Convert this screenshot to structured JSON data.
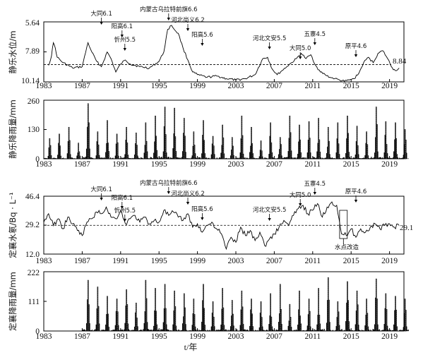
{
  "x_title": "t/年",
  "chart_data": [
    {
      "type": "line",
      "ylabel": "静乐水位/m",
      "y_inverted": true,
      "ylim": [
        5.64,
        10.14
      ],
      "yticks": [
        "5.64",
        "7.89",
        "10.14"
      ],
      "xlim": [
        1983,
        2020.5
      ],
      "xticks": [
        "1983",
        "1987",
        "1991",
        "1995",
        "1999",
        "2003",
        "2007",
        "2011",
        "2015",
        "2019"
      ],
      "ref_line": 8.84,
      "ref_label": "8.84",
      "series": [
        {
          "x": [
            1983.5,
            1983.8,
            1984.0,
            1984.2,
            1984.4,
            1985.0,
            1986.0,
            1987.0,
            1987.6,
            1988.0,
            1988.5,
            1989.0,
            1989.6,
            1990.0,
            1990.5,
            1991.0,
            1991.5,
            1992.0,
            1993.0,
            1994.0,
            1995.0,
            1995.5,
            1995.9,
            1996.3,
            1996.7,
            1997.0,
            1997.5,
            1998.0,
            1998.5,
            1999.0,
            2000.0,
            2001.0,
            2002.0,
            2003.0,
            2004.0,
            2005.0,
            2005.8,
            2006.3,
            2006.8,
            2007.3,
            2007.8,
            2008.3,
            2008.8,
            2009.3,
            2009.8,
            2010.3,
            2010.8,
            2011.3,
            2011.8,
            2012.3,
            2012.8,
            2013.3,
            2013.8,
            2014.3,
            2014.8,
            2015.3,
            2015.8,
            2016.3,
            2016.8,
            2017.3,
            2017.8,
            2018.3,
            2018.8,
            2019.3,
            2019.6,
            2020.0
          ],
          "values": [
            8.9,
            8.2,
            7.2,
            7.6,
            8.3,
            8.7,
            9.1,
            9.0,
            7.2,
            7.9,
            8.6,
            9.0,
            7.9,
            8.4,
            9.4,
            8.8,
            8.5,
            8.8,
            9.0,
            9.1,
            8.6,
            7.9,
            6.2,
            5.9,
            6.3,
            6.5,
            7.6,
            8.5,
            9.4,
            9.6,
            9.8,
            9.7,
            9.9,
            10.0,
            9.9,
            9.6,
            8.4,
            8.3,
            9.2,
            9.6,
            9.3,
            9.0,
            8.7,
            8.4,
            8.0,
            8.4,
            8.1,
            8.9,
            9.4,
            9.6,
            9.8,
            9.9,
            10.0,
            10.1,
            10.0,
            9.9,
            9.5,
            8.7,
            8.3,
            8.7,
            8.0,
            7.8,
            8.4,
            9.1,
            9.3,
            9.1
          ]
        }
      ],
      "annotations": [
        {
          "text": "大同6.1",
          "year": 1989.0
        },
        {
          "text": "阳高6.1",
          "year": 1991.0
        },
        {
          "text": "忻州5.5",
          "year": 1991.0
        },
        {
          "text": "内蒙古乌拉特前旗6.6",
          "year": 1996.0
        },
        {
          "text": "河北尚义6.2",
          "year": 1998.0
        },
        {
          "text": "阳高5.6",
          "year": 1999.5
        },
        {
          "text": "河北文安5.5",
          "year": 2006.5
        },
        {
          "text": "大同5.0",
          "year": 2010.0
        },
        {
          "text": "五寨4.5",
          "year": 2011.0
        },
        {
          "text": "原平4.6",
          "year": 2015.5
        }
      ]
    },
    {
      "type": "bar",
      "ylabel": "静乐降雨量/mm",
      "ylim": [
        0,
        260
      ],
      "yticks": [
        "0",
        "130",
        "260"
      ],
      "xlim": [
        1983,
        2020.5
      ],
      "xticks": [
        "1983",
        "1987",
        "1991",
        "1995",
        "1999",
        "2003",
        "2007",
        "2011",
        "2015",
        "2019"
      ],
      "start_year": 1983,
      "end_year": 2020,
      "annual_peaks": [
        90,
        110,
        140,
        70,
        245,
        120,
        170,
        110,
        140,
        115,
        160,
        190,
        230,
        225,
        180,
        120,
        170,
        100,
        150,
        95,
        190,
        140,
        80,
        160,
        95,
        190,
        150,
        165,
        180,
        140,
        160,
        190,
        145,
        120,
        230,
        165,
        160,
        130
      ]
    },
    {
      "type": "line",
      "ylabel": "定襄水氡/Bq · L⁻¹",
      "ylim": [
        12.0,
        46.4
      ],
      "yticks": [
        "12.0",
        "29.2",
        "46.4"
      ],
      "xlim": [
        1983,
        2020.5
      ],
      "xticks": [
        "1983",
        "1987",
        "1991",
        "1995",
        "1999",
        "2003",
        "2007",
        "2011",
        "2015",
        "2019"
      ],
      "ref_line": 29.1,
      "ref_label": "29.1",
      "callout": "水点改造",
      "series": [
        {
          "x": [
            1983.0,
            1983.5,
            1984.0,
            1984.5,
            1985.0,
            1985.5,
            1986.0,
            1986.5,
            1987.0,
            1987.5,
            1988.0,
            1988.5,
            1989.0,
            1989.5,
            1990.0,
            1990.5,
            1991.0,
            1991.5,
            1992.0,
            1992.5,
            1993.0,
            1993.5,
            1994.0,
            1994.5,
            1995.0,
            1995.5,
            1996.0,
            1996.5,
            1997.0,
            1997.5,
            1998.0,
            1998.5,
            1999.0,
            1999.5,
            2000.0,
            2000.5,
            2001.0,
            2001.5,
            2002.0,
            2002.5,
            2003.0,
            2003.5,
            2004.0,
            2004.5,
            2005.0,
            2005.5,
            2006.0,
            2006.5,
            2007.0,
            2007.5,
            2008.0,
            2008.5,
            2009.0,
            2009.5,
            2010.0,
            2010.5,
            2011.0,
            2011.5,
            2012.0,
            2012.5,
            2013.0,
            2013.5,
            2014.0,
            2014.5,
            2015.0,
            2015.5,
            2016.0,
            2016.5,
            2017.0,
            2017.5,
            2018.0,
            2018.5,
            2019.0,
            2019.5,
            2020.0
          ],
          "values": [
            31,
            36,
            29,
            33,
            27,
            34,
            30,
            26,
            23,
            31,
            33,
            37,
            36,
            40,
            34,
            33,
            38,
            30,
            33,
            35,
            31,
            34,
            30,
            32,
            31,
            38,
            35,
            37,
            34,
            32,
            36,
            28,
            30,
            25,
            29,
            31,
            27,
            24,
            15,
            22,
            19,
            28,
            23,
            26,
            20,
            25,
            17,
            21,
            24,
            28,
            32,
            29,
            35,
            39,
            41,
            36,
            38,
            42,
            34,
            40,
            43,
            41,
            24,
            23,
            27,
            22,
            27,
            25,
            28,
            30,
            27,
            29,
            30,
            28,
            29
          ]
        }
      ],
      "annotations": [
        {
          "text": "大同6.1",
          "year": 1989.0
        },
        {
          "text": "阳高6.1",
          "year": 1991.0
        },
        {
          "text": "忻州5.5",
          "year": 1991.0
        },
        {
          "text": "内蒙古乌拉特前旗6.6",
          "year": 1996.0
        },
        {
          "text": "河北尚义6.2",
          "year": 1998.0
        },
        {
          "text": "阳高5.6",
          "year": 1999.5
        },
        {
          "text": "河北文安5.5",
          "year": 2006.5
        },
        {
          "text": "大同5.0",
          "year": 2010.0
        },
        {
          "text": "五寨4.5",
          "year": 2011.0
        },
        {
          "text": "原平4.6",
          "year": 2015.5
        }
      ]
    },
    {
      "type": "bar",
      "ylabel": "定襄降雨量/mm",
      "ylim": [
        0,
        222
      ],
      "yticks": [
        "0",
        "111",
        "222"
      ],
      "xlim": [
        1983,
        2020.5
      ],
      "xticks": [
        "1983",
        "1987",
        "1991",
        "1995",
        "1999",
        "2003",
        "2007",
        "2011",
        "2015",
        "2019"
      ],
      "start_year": 1987,
      "end_year": 2020,
      "annual_peaks": [
        190,
        165,
        130,
        120,
        155,
        105,
        190,
        160,
        175,
        150,
        140,
        120,
        175,
        110,
        160,
        115,
        150,
        120,
        110,
        140,
        175,
        100,
        150,
        120,
        160,
        200,
        110,
        185,
        150,
        120,
        195,
        140,
        130,
        120
      ]
    }
  ]
}
